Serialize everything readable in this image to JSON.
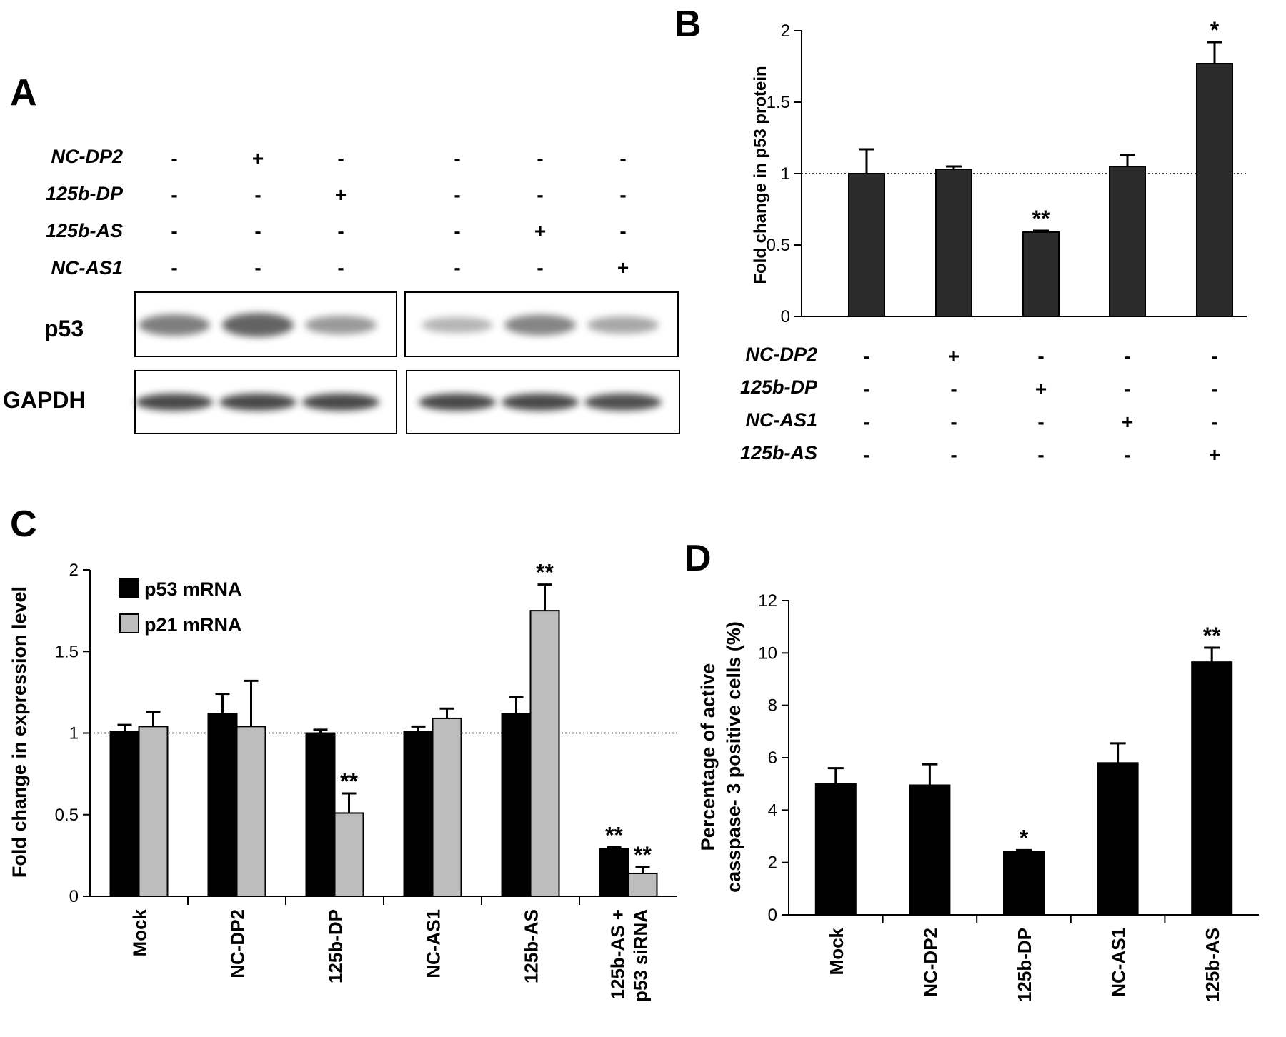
{
  "panels": {
    "a": {
      "letter": "A",
      "row_labels": [
        "NC-DP2",
        "125b-DP",
        "125b-AS",
        "NC-AS1"
      ],
      "treatments": [
        [
          "-",
          "+",
          "-",
          "-",
          "-",
          "-"
        ],
        [
          "-",
          "-",
          "+",
          "-",
          "-",
          "-"
        ],
        [
          "-",
          "-",
          "-",
          "-",
          "+",
          "-"
        ],
        [
          "-",
          "-",
          "-",
          "-",
          "-",
          "+"
        ]
      ],
      "blot_labels": {
        "p53": "p53",
        "gapdh": "GAPDH"
      },
      "p53_band_intensity": [
        0.65,
        0.85,
        0.45,
        0.25,
        0.6,
        0.35
      ],
      "gapdh_band_intensity": [
        0.85,
        0.85,
        0.85,
        0.85,
        0.85,
        0.8
      ]
    },
    "b": {
      "letter": "B",
      "row_labels": [
        "NC-DP2",
        "125b-DP",
        "NC-AS1",
        "125b-AS"
      ],
      "treatments": [
        [
          "-",
          "+",
          "-",
          "-",
          "-"
        ],
        [
          "-",
          "-",
          "+",
          "-",
          "-"
        ],
        [
          "-",
          "-",
          "-",
          "+",
          "-"
        ],
        [
          "-",
          "-",
          "-",
          "-",
          "+"
        ]
      ]
    },
    "c": {
      "letter": "C"
    },
    "d": {
      "letter": "D"
    }
  },
  "chart_data": [
    {
      "panel": "B",
      "type": "bar",
      "ylabel": "Fold change in p53 protein",
      "ylim": [
        0,
        2
      ],
      "yticks": [
        0,
        0.5,
        1,
        1.5,
        2
      ],
      "ytick_labels": [
        "0",
        "0.5",
        "1",
        "1.5",
        "2"
      ],
      "reference_line": 1,
      "bar_color": "#2b2b2b",
      "series": [
        {
          "values": [
            1.0,
            1.03,
            0.59,
            1.05,
            1.77
          ],
          "errors": [
            0.17,
            0.02,
            0.01,
            0.08,
            0.15
          ],
          "significance": [
            "",
            "",
            "**",
            "",
            "*"
          ]
        }
      ]
    },
    {
      "panel": "C",
      "type": "bar",
      "ylabel": "Fold change in expression level",
      "ylim": [
        0,
        2
      ],
      "yticks": [
        0,
        0.5,
        1,
        1.5,
        2
      ],
      "ytick_labels": [
        "0",
        "0.5",
        "1",
        "1.5",
        "2"
      ],
      "reference_line": 1,
      "legend_position": "top-left",
      "categories": [
        [
          "Mock"
        ],
        [
          "NC-DP2"
        ],
        [
          "125b-DP"
        ],
        [
          "NC-AS1"
        ],
        [
          "125b-AS"
        ],
        [
          "125b-AS +",
          "p53 siRNA"
        ]
      ],
      "series": [
        {
          "name": "p53 mRNA",
          "color": "#000000",
          "values": [
            1.01,
            1.12,
            1.0,
            1.01,
            1.12,
            0.29
          ],
          "errors": [
            0.04,
            0.12,
            0.02,
            0.03,
            0.1,
            0.01
          ],
          "significance": [
            "",
            "",
            "",
            "",
            "",
            "**"
          ]
        },
        {
          "name": "p21 mRNA",
          "color": "#bdbdbd",
          "values": [
            1.04,
            1.04,
            0.51,
            1.09,
            1.75,
            0.14
          ],
          "errors": [
            0.09,
            0.28,
            0.12,
            0.06,
            0.16,
            0.04
          ],
          "significance": [
            "",
            "",
            "**",
            "",
            "**",
            "**"
          ]
        }
      ]
    },
    {
      "panel": "D",
      "type": "bar",
      "ylabel_lines": [
        "Percentage of active",
        "casspase- 3 positive cells (%)"
      ],
      "ylim": [
        0,
        12
      ],
      "yticks": [
        0,
        2,
        4,
        6,
        8,
        10,
        12
      ],
      "ytick_labels": [
        "0",
        "2",
        "4",
        "6",
        "8",
        "10",
        "12"
      ],
      "bar_color": "#000000",
      "categories": [
        "Mock",
        "NC-DP2",
        "125b-DP",
        "NC-AS1",
        "125b-AS"
      ],
      "series": [
        {
          "values": [
            5.0,
            4.95,
            2.4,
            5.8,
            9.65
          ],
          "errors": [
            0.6,
            0.8,
            0.07,
            0.75,
            0.55
          ],
          "significance": [
            "",
            "",
            "*",
            "",
            "**"
          ]
        }
      ]
    }
  ]
}
